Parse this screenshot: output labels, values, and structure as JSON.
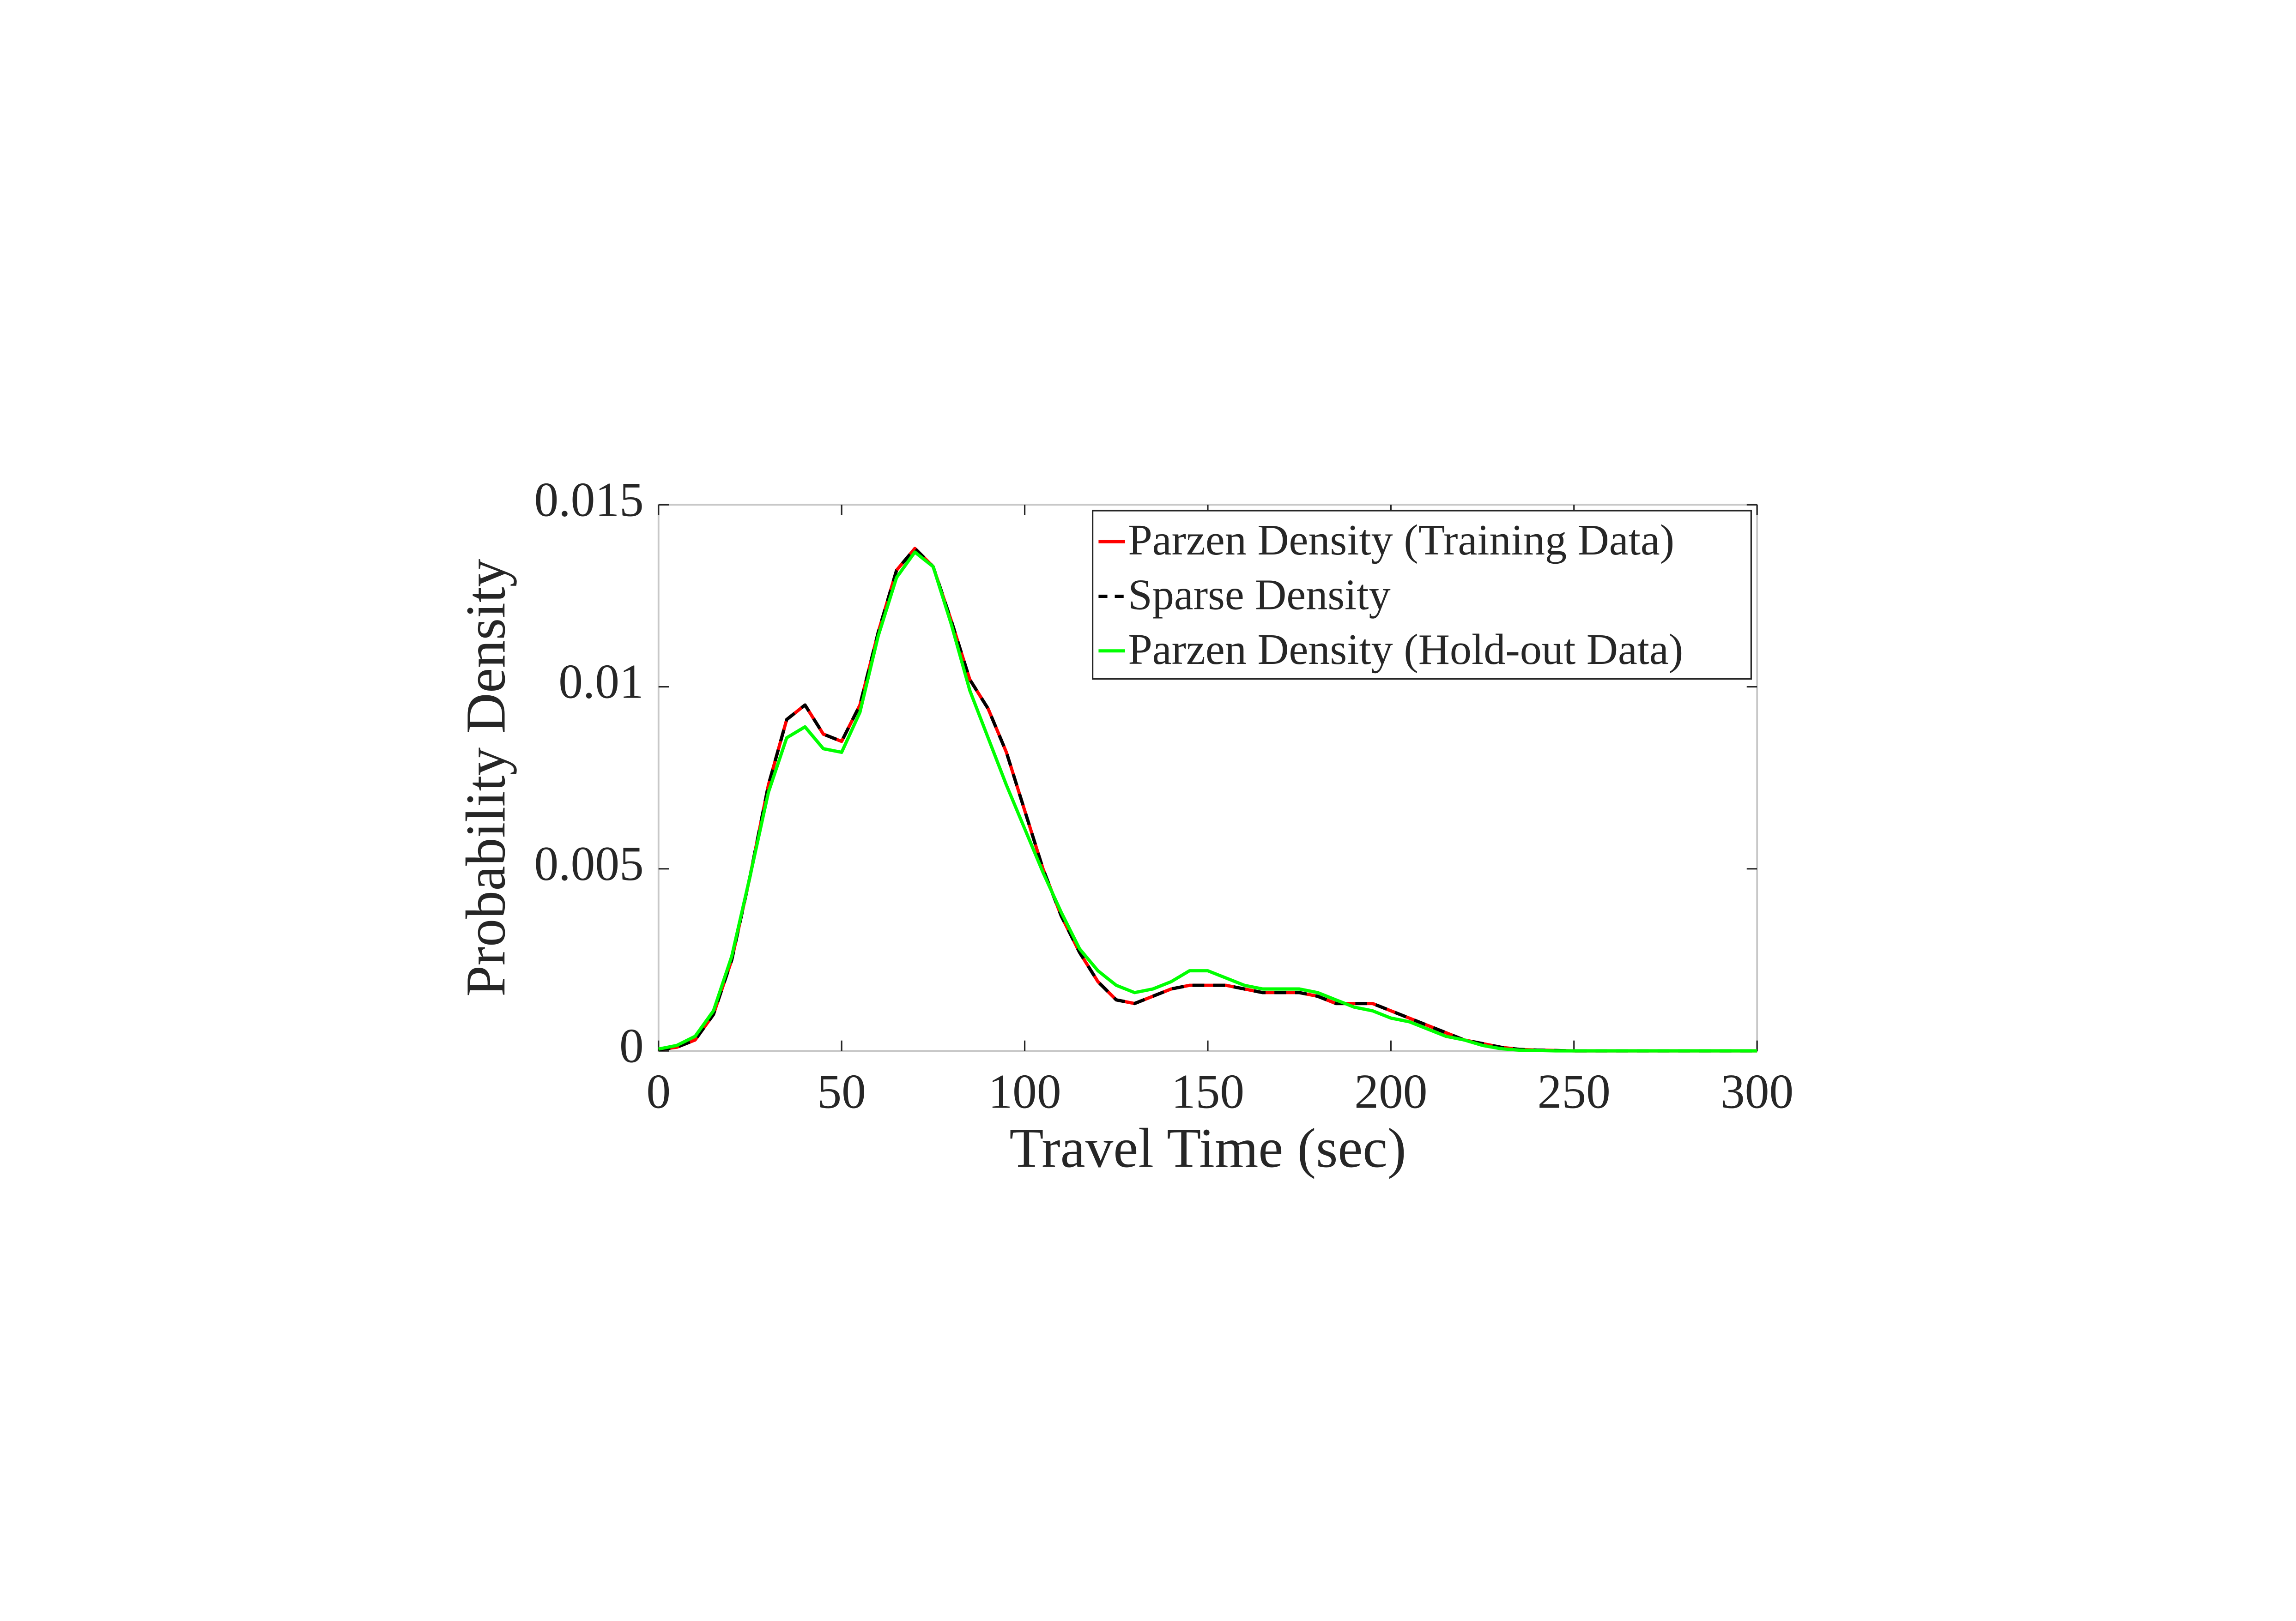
{
  "chart_data": {
    "type": "line",
    "xlabel": "Travel Time (sec)",
    "ylabel": "Probability Density",
    "x": [
      0,
      5,
      10,
      15,
      20,
      25,
      30,
      35,
      40,
      45,
      50,
      55,
      60,
      65,
      70,
      75,
      80,
      85,
      90,
      95,
      100,
      105,
      110,
      115,
      120,
      125,
      130,
      135,
      140,
      145,
      150,
      155,
      160,
      165,
      170,
      175,
      180,
      185,
      190,
      195,
      200,
      205,
      210,
      215,
      220,
      225,
      230,
      235,
      240,
      245,
      250,
      255,
      260,
      265,
      270,
      275,
      280,
      285,
      290,
      295,
      300
    ],
    "series": [
      {
        "name": "Parzen Density (Training Data)",
        "color": "#ff0000",
        "linestyle": "solid",
        "values": [
          3e-05,
          0.0001,
          0.0003,
          0.001,
          0.0025,
          0.0048,
          0.0073,
          0.0091,
          0.0095,
          0.0087,
          0.0085,
          0.0095,
          0.0115,
          0.0132,
          0.0138,
          0.0133,
          0.0118,
          0.0102,
          0.0094,
          0.0082,
          0.0066,
          0.005,
          0.0037,
          0.0027,
          0.0019,
          0.0014,
          0.0013,
          0.0015,
          0.0017,
          0.0018,
          0.0018,
          0.0018,
          0.0017,
          0.0016,
          0.0016,
          0.0016,
          0.0015,
          0.0013,
          0.0013,
          0.0013,
          0.0011,
          0.0009,
          0.0007,
          0.0005,
          0.0003,
          0.0002,
          0.0001,
          4e-05,
          2e-05,
          1e-05,
          0,
          0,
          0,
          0,
          0,
          0,
          0,
          0,
          0,
          0,
          0
        ]
      },
      {
        "name": "Sparse Density",
        "color": "#000000",
        "linestyle": "dashed",
        "values": [
          3e-05,
          0.0001,
          0.0003,
          0.001,
          0.0025,
          0.0048,
          0.0073,
          0.0091,
          0.0095,
          0.0087,
          0.0085,
          0.0095,
          0.0115,
          0.0132,
          0.0138,
          0.0133,
          0.0118,
          0.0102,
          0.0094,
          0.0082,
          0.0066,
          0.005,
          0.0037,
          0.0027,
          0.0019,
          0.0014,
          0.0013,
          0.0015,
          0.0017,
          0.0018,
          0.0018,
          0.0018,
          0.0017,
          0.0016,
          0.0016,
          0.0016,
          0.0015,
          0.0013,
          0.0013,
          0.0013,
          0.0011,
          0.0009,
          0.0007,
          0.0005,
          0.0003,
          0.0002,
          0.0001,
          4e-05,
          2e-05,
          1e-05,
          0,
          0,
          0,
          0,
          0,
          0,
          0,
          0,
          0,
          0,
          0
        ]
      },
      {
        "name": "Parzen Density (Hold-out Data)",
        "color": "#00ff00",
        "linestyle": "solid",
        "values": [
          5e-05,
          0.00015,
          0.0004,
          0.0011,
          0.0026,
          0.0048,
          0.0071,
          0.0086,
          0.0089,
          0.0083,
          0.0082,
          0.0093,
          0.0114,
          0.013,
          0.0137,
          0.0133,
          0.0117,
          0.0099,
          0.0086,
          0.0073,
          0.0061,
          0.0049,
          0.0038,
          0.0028,
          0.0022,
          0.0018,
          0.0016,
          0.0017,
          0.0019,
          0.0022,
          0.0022,
          0.002,
          0.0018,
          0.0017,
          0.0017,
          0.0017,
          0.0016,
          0.0014,
          0.0012,
          0.0011,
          0.0009,
          0.0008,
          0.0006,
          0.0004,
          0.0003,
          0.00015,
          6e-05,
          2e-05,
          1e-05,
          0,
          0,
          0,
          0,
          0,
          0,
          0,
          0,
          0,
          0,
          0,
          0
        ]
      }
    ],
    "xlim": [
      0,
      300
    ],
    "xticks": [
      0,
      50,
      100,
      150,
      200,
      250,
      300
    ],
    "ylim": [
      0,
      0.015
    ],
    "yticks": [
      0,
      0.005,
      0.01,
      0.015
    ],
    "grid": false,
    "legend": "upper right"
  }
}
